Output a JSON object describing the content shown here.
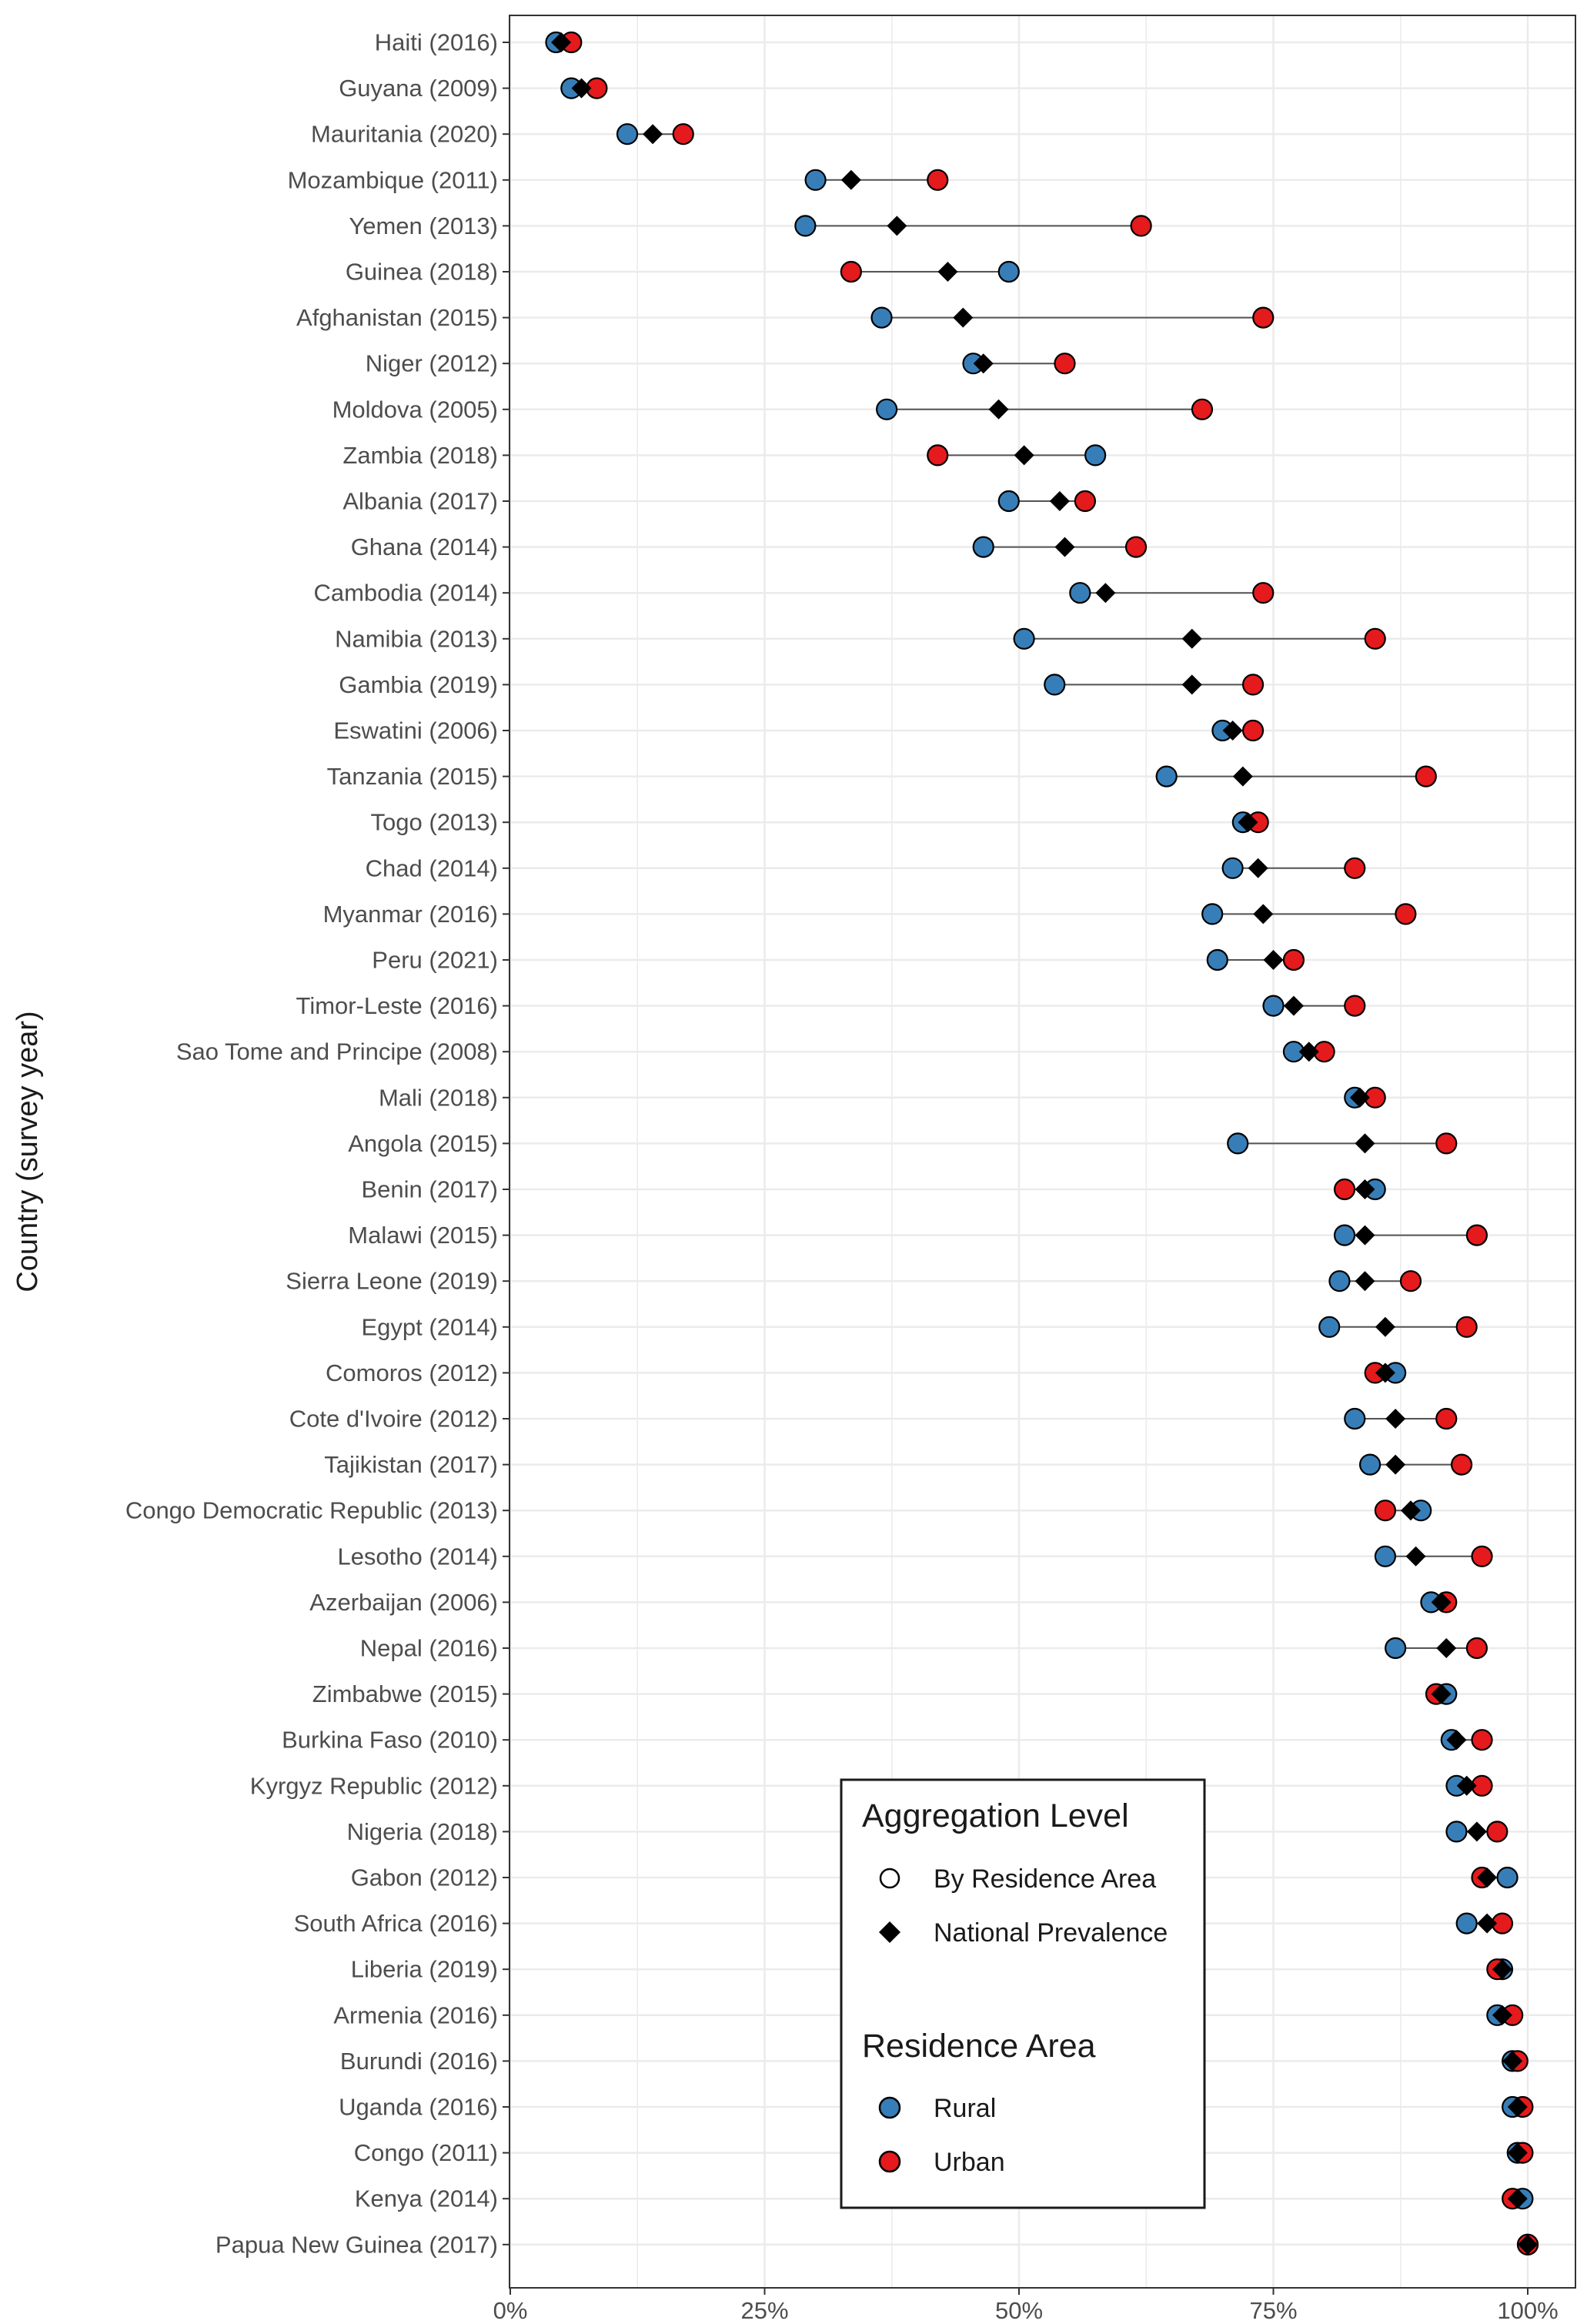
{
  "chart_data": {
    "type": "dot",
    "title": "",
    "xlabel": "",
    "ylabel": "Country (survey year)",
    "xlim": [
      0,
      100
    ],
    "xticks": [
      0,
      25,
      50,
      75,
      100
    ],
    "xtick_labels": [
      "0%",
      "25%",
      "50%",
      "75%",
      "100%"
    ],
    "colors": {
      "rural": "#377eb8",
      "urban": "#e41a1c",
      "national": "#000000",
      "segment": "#555555",
      "grid": "#ebebeb"
    },
    "legend": {
      "position": "bottom-center",
      "groups": [
        {
          "title": "Aggregation Level",
          "items": [
            {
              "label": "By Residence Area",
              "shape": "circle-open"
            },
            {
              "label": "National Prevalence",
              "shape": "diamond"
            }
          ]
        },
        {
          "title": "Residence Area",
          "items": [
            {
              "label": "Rural",
              "shape": "circle-blue"
            },
            {
              "label": "Urban",
              "shape": "circle-red"
            }
          ]
        }
      ]
    },
    "rows": [
      {
        "country": "Haiti (2016)",
        "rural": 4.5,
        "national": 5,
        "urban": 6
      },
      {
        "country": "Guyana (2009)",
        "rural": 6,
        "national": 7,
        "urban": 8.5
      },
      {
        "country": "Mauritania (2020)",
        "rural": 11.5,
        "national": 14,
        "urban": 17
      },
      {
        "country": "Mozambique (2011)",
        "rural": 30,
        "national": 33.5,
        "urban": 42
      },
      {
        "country": "Yemen (2013)",
        "rural": 29,
        "national": 38,
        "urban": 62
      },
      {
        "country": "Guinea (2018)",
        "rural": 49,
        "national": 43,
        "urban": 33.5
      },
      {
        "country": "Afghanistan (2015)",
        "rural": 36.5,
        "national": 44.5,
        "urban": 74
      },
      {
        "country": "Niger (2012)",
        "rural": 45.5,
        "national": 46.5,
        "urban": 54.5
      },
      {
        "country": "Moldova (2005)",
        "rural": 37,
        "national": 48,
        "urban": 68
      },
      {
        "country": "Zambia (2018)",
        "rural": 57.5,
        "national": 50.5,
        "urban": 42
      },
      {
        "country": "Albania (2017)",
        "rural": 49,
        "national": 54,
        "urban": 56.5
      },
      {
        "country": "Ghana (2014)",
        "rural": 46.5,
        "national": 54.5,
        "urban": 61.5
      },
      {
        "country": "Cambodia (2014)",
        "rural": 56,
        "national": 58.5,
        "urban": 74
      },
      {
        "country": "Namibia (2013)",
        "rural": 50.5,
        "national": 67,
        "urban": 85
      },
      {
        "country": "Gambia (2019)",
        "rural": 53.5,
        "national": 67,
        "urban": 73
      },
      {
        "country": "Eswatini (2006)",
        "rural": 70,
        "national": 71,
        "urban": 73
      },
      {
        "country": "Tanzania (2015)",
        "rural": 64.5,
        "national": 72,
        "urban": 90
      },
      {
        "country": "Togo (2013)",
        "rural": 72,
        "national": 72.5,
        "urban": 73.5
      },
      {
        "country": "Chad (2014)",
        "rural": 71,
        "national": 73.5,
        "urban": 83
      },
      {
        "country": "Myanmar (2016)",
        "rural": 69,
        "national": 74,
        "urban": 88
      },
      {
        "country": "Peru (2021)",
        "rural": 69.5,
        "national": 75,
        "urban": 77
      },
      {
        "country": "Timor-Leste (2016)",
        "rural": 75,
        "national": 77,
        "urban": 83
      },
      {
        "country": "Sao Tome and Principe (2008)",
        "rural": 77,
        "national": 78.5,
        "urban": 80
      },
      {
        "country": "Mali (2018)",
        "rural": 83,
        "national": 83.5,
        "urban": 85
      },
      {
        "country": "Angola (2015)",
        "rural": 71.5,
        "national": 84,
        "urban": 92
      },
      {
        "country": "Benin (2017)",
        "rural": 85,
        "national": 84,
        "urban": 82
      },
      {
        "country": "Malawi (2015)",
        "rural": 82,
        "national": 84,
        "urban": 95
      },
      {
        "country": "Sierra Leone (2019)",
        "rural": 81.5,
        "national": 84,
        "urban": 88.5
      },
      {
        "country": "Egypt (2014)",
        "rural": 80.5,
        "national": 86,
        "urban": 94
      },
      {
        "country": "Comoros (2012)",
        "rural": 87,
        "national": 86,
        "urban": 85
      },
      {
        "country": "Cote d'Ivoire (2012)",
        "rural": 83,
        "national": 87,
        "urban": 92
      },
      {
        "country": "Tajikistan (2017)",
        "rural": 84.5,
        "national": 87,
        "urban": 93.5
      },
      {
        "country": "Congo Democratic Republic (2013)",
        "rural": 89.5,
        "national": 88.5,
        "urban": 86
      },
      {
        "country": "Lesotho (2014)",
        "rural": 86,
        "national": 89,
        "urban": 95.5
      },
      {
        "country": "Azerbaijan (2006)",
        "rural": 90.5,
        "national": 91.5,
        "urban": 92
      },
      {
        "country": "Nepal (2016)",
        "rural": 87,
        "national": 92,
        "urban": 95
      },
      {
        "country": "Zimbabwe (2015)",
        "rural": 92,
        "national": 91.5,
        "urban": 91
      },
      {
        "country": "Burkina Faso (2010)",
        "rural": 92.5,
        "national": 93,
        "urban": 95.5
      },
      {
        "country": "Kyrgyz Republic (2012)",
        "rural": 93,
        "national": 94,
        "urban": 95.5
      },
      {
        "country": "Nigeria (2018)",
        "rural": 93,
        "national": 95,
        "urban": 97
      },
      {
        "country": "Gabon (2012)",
        "rural": 98,
        "national": 96,
        "urban": 95.5
      },
      {
        "country": "South Africa (2016)",
        "rural": 94,
        "national": 96,
        "urban": 97.5
      },
      {
        "country": "Liberia (2019)",
        "rural": 97.5,
        "national": 97.5,
        "urban": 97
      },
      {
        "country": "Armenia (2016)",
        "rural": 97,
        "national": 97.5,
        "urban": 98.5
      },
      {
        "country": "Burundi (2016)",
        "rural": 98.5,
        "national": 98.5,
        "urban": 99
      },
      {
        "country": "Uganda (2016)",
        "rural": 98.5,
        "national": 99,
        "urban": 99.5
      },
      {
        "country": "Congo (2011)",
        "rural": 99,
        "national": 99,
        "urban": 99.5
      },
      {
        "country": "Kenya (2014)",
        "rural": 99.5,
        "national": 99,
        "urban": 98.5
      },
      {
        "country": "Papua New Guinea (2017)",
        "rural": 100,
        "national": 100,
        "urban": 100
      }
    ]
  }
}
